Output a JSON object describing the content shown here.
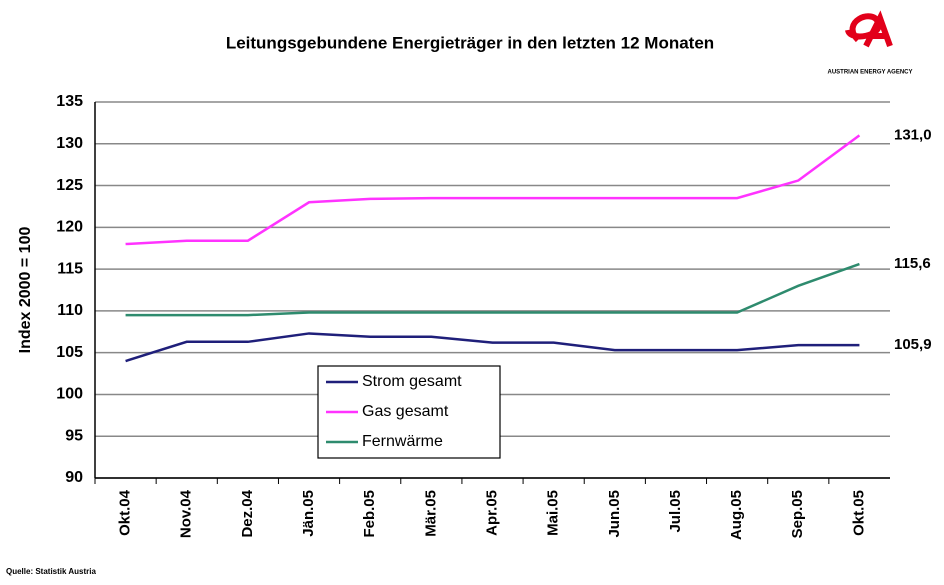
{
  "chart_data": {
    "type": "line",
    "title": "Leitungsgebundene Energieträger in den letzten 12 Monaten",
    "y_label": "Index 2000 = 100",
    "source": "Quelle: Statistik Austria",
    "logo_text": "AUSTRIAN ENERGY AGENCY",
    "categories": [
      "Okt.04",
      "Nov.04",
      "Dez.04",
      "Jän.05",
      "Feb.05",
      "Mär.05",
      "Apr.05",
      "Mai.05",
      "Jun.05",
      "Jul.05",
      "Aug.05",
      "Sep.05",
      "Okt.05"
    ],
    "series": [
      {
        "name": "Strom gesamt",
        "color": "#1f1f7a",
        "values": [
          104,
          106.3,
          106.3,
          107.3,
          106.9,
          106.9,
          106.2,
          106.2,
          105.3,
          105.3,
          105.3,
          105.9,
          105.9
        ],
        "value_labels": [
          null,
          null,
          null,
          null,
          null,
          null,
          null,
          null,
          null,
          null,
          null,
          null,
          "105,9"
        ]
      },
      {
        "name": "Gas gesamt",
        "color": "#ff33ff",
        "values": [
          118,
          118.4,
          118.4,
          123,
          123.4,
          123.5,
          123.5,
          123.5,
          123.5,
          123.5,
          123.5,
          125.6,
          131.0
        ],
        "value_labels": [
          null,
          null,
          null,
          null,
          null,
          null,
          null,
          null,
          null,
          null,
          null,
          null,
          "131,0"
        ]
      },
      {
        "name": "Fernwärme",
        "color": "#2e8b6e",
        "values": [
          109.5,
          109.5,
          109.5,
          109.8,
          109.8,
          109.8,
          109.8,
          109.8,
          109.8,
          109.8,
          109.8,
          113,
          115.6
        ],
        "value_labels": [
          null,
          null,
          null,
          null,
          null,
          null,
          null,
          null,
          null,
          null,
          null,
          null,
          "115,6"
        ]
      }
    ],
    "ylim": [
      90,
      135
    ],
    "yticks": [
      90,
      95,
      100,
      105,
      110,
      115,
      120,
      125,
      130,
      135
    ],
    "grid": true
  }
}
